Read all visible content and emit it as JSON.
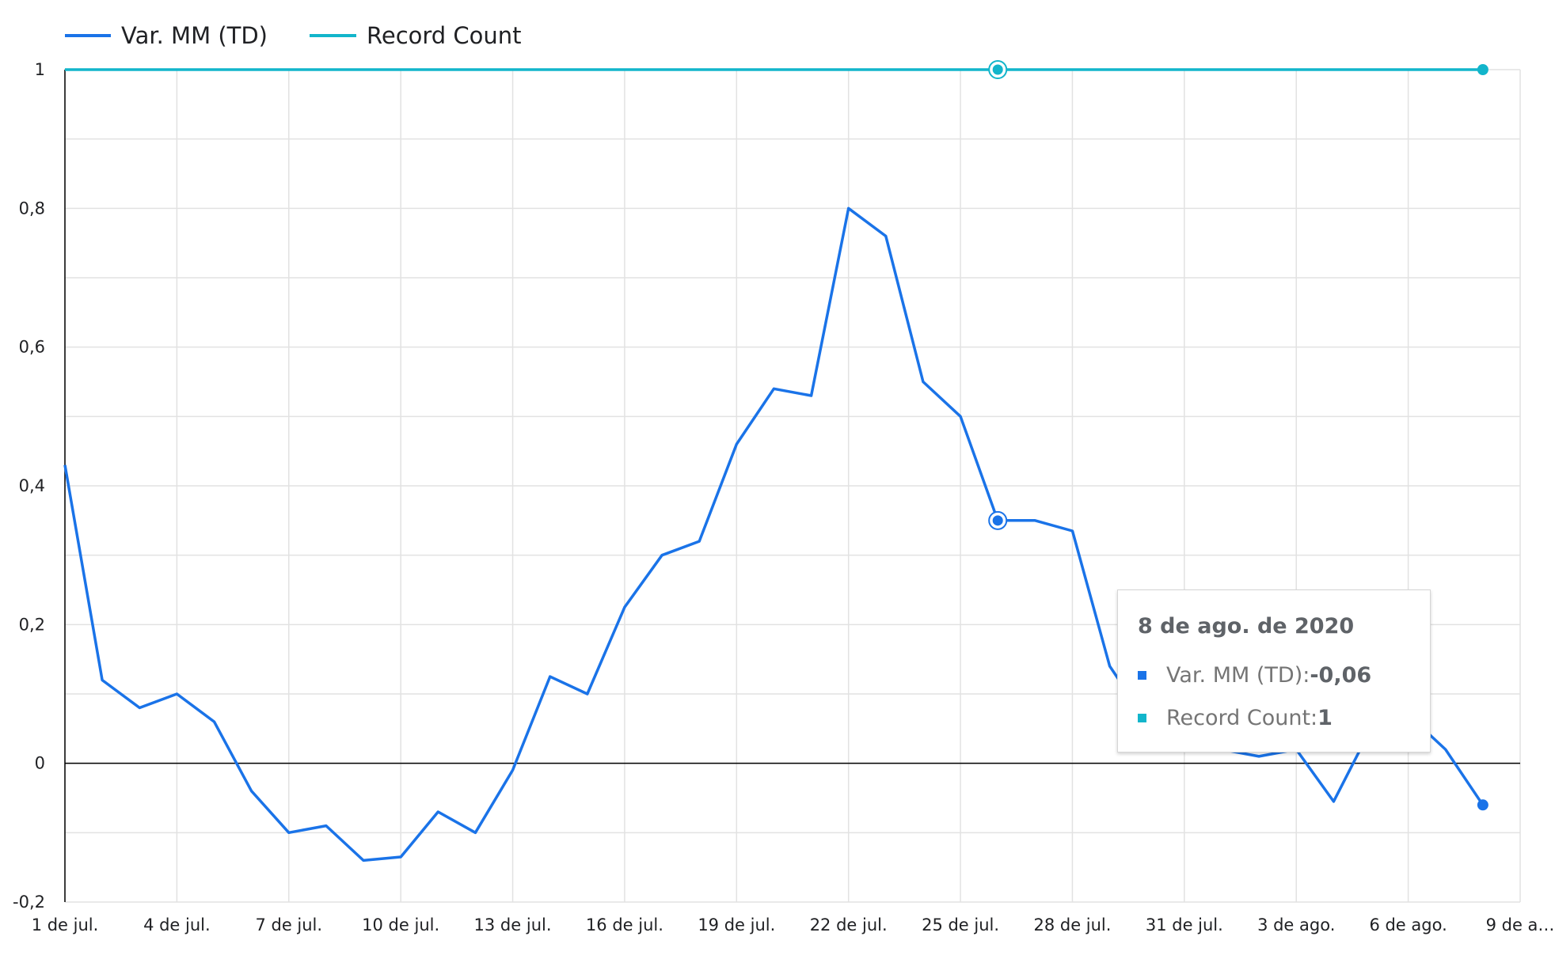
{
  "colors": {
    "series1": "#1a73e8",
    "series2": "#12b5cb",
    "grid": "#e2e2e2",
    "axis": "#000000"
  },
  "chart_data": {
    "type": "line",
    "title": "",
    "xlabel": "",
    "ylabel": "",
    "ylim": [
      -0.2,
      1
    ],
    "y_ticks": [
      "1",
      "0,8",
      "0,6",
      "0,4",
      "0,2",
      "0",
      "-0,2"
    ],
    "y_tick_values": [
      1,
      0.8,
      0.6,
      0.4,
      0.2,
      0,
      -0.2
    ],
    "x_tick_labels": [
      "1 de jul.",
      "4 de jul.",
      "7 de jul.",
      "10 de jul.",
      "13 de jul.",
      "16 de jul.",
      "19 de jul.",
      "22 de jul.",
      "25 de jul.",
      "28 de jul.",
      "31 de jul.",
      "3 de ago.",
      "6 de ago.",
      "9 de a…"
    ],
    "x_tick_days": [
      0,
      3,
      6,
      9,
      12,
      15,
      18,
      21,
      24,
      27,
      30,
      33,
      36,
      39
    ],
    "x_days": [
      0,
      1,
      2,
      3,
      4,
      5,
      6,
      7,
      8,
      9,
      10,
      11,
      12,
      13,
      14,
      15,
      16,
      17,
      18,
      19,
      20,
      21,
      22,
      23,
      24,
      25,
      26,
      27,
      28,
      29,
      30,
      31,
      32,
      33,
      34,
      35,
      36,
      37,
      38
    ],
    "legend_position": "top-left",
    "grid": true,
    "series": [
      {
        "name": "Var. MM (TD)",
        "values": [
          0.43,
          0.12,
          0.08,
          0.1,
          0.06,
          -0.04,
          -0.1,
          -0.09,
          -0.14,
          -0.135,
          -0.07,
          -0.1,
          -0.01,
          0.125,
          0.1,
          0.225,
          0.3,
          0.32,
          0.46,
          0.54,
          0.53,
          0.8,
          0.76,
          0.55,
          0.5,
          0.35,
          0.35,
          0.335,
          0.14,
          0.06,
          0.03,
          0.02,
          0.01,
          0.02,
          -0.055,
          0.05,
          0.07,
          0.02,
          -0.06
        ]
      },
      {
        "name": "Record Count",
        "values": [
          1,
          1,
          1,
          1,
          1,
          1,
          1,
          1,
          1,
          1,
          1,
          1,
          1,
          1,
          1,
          1,
          1,
          1,
          1,
          1,
          1,
          1,
          1,
          1,
          1,
          1,
          1,
          1,
          1,
          1,
          1,
          1,
          1,
          1,
          1,
          1,
          1,
          1,
          1
        ]
      }
    ],
    "highlighted_index": 25,
    "last_point_marker": true,
    "tooltip": {
      "title": "8 de ago. de 2020",
      "rows": [
        {
          "label": "Var. MM (TD): ",
          "value": "-0,06"
        },
        {
          "label": "Record Count: ",
          "value": "1"
        }
      ]
    }
  }
}
